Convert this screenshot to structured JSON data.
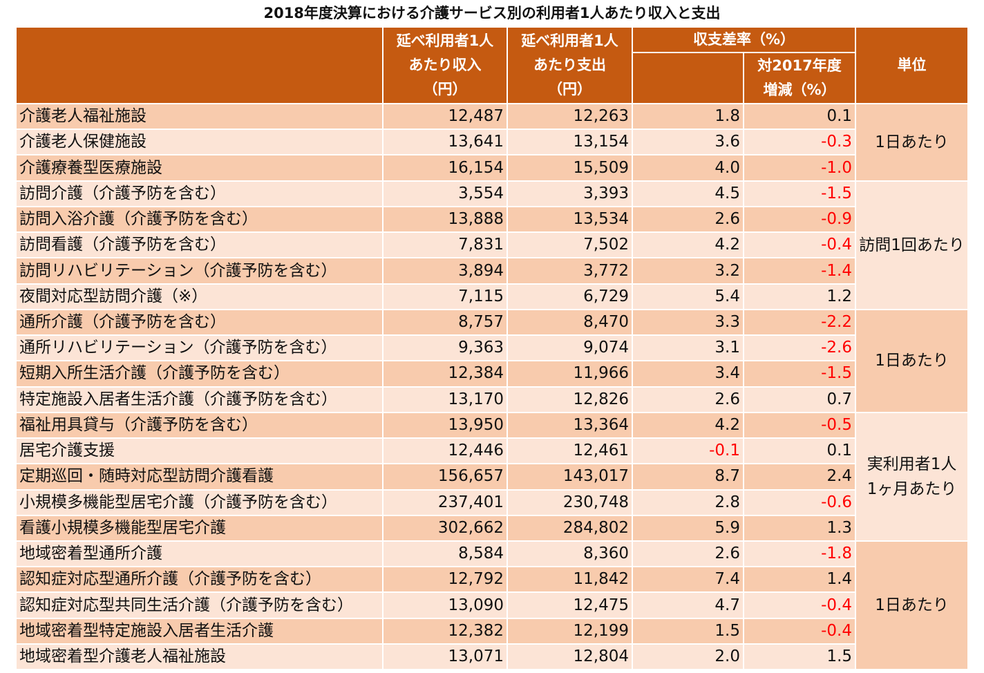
{
  "title": "2018年度決算における介護サービス別の利用者1人あたり収入と支出",
  "headers": {
    "income": [
      "延べ利用者1人",
      "あたり収入",
      "（円）"
    ],
    "expense": [
      "延べ利用者1人",
      "あたり支出",
      "（円）"
    ],
    "margin": "収支差率（%）",
    "change": [
      "対2017年度",
      "増減（%）"
    ],
    "unit": "単位"
  },
  "rows": [
    {
      "name": "介護老人福祉施設",
      "income": "12,487",
      "expense": "12,263",
      "margin": "1.8",
      "change": "0.1"
    },
    {
      "name": "介護老人保健施設",
      "income": "13,641",
      "expense": "13,154",
      "margin": "3.6",
      "change": "-0.3"
    },
    {
      "name": "介護療養型医療施設",
      "income": "16,154",
      "expense": "15,509",
      "margin": "4.0",
      "change": "-1.0"
    },
    {
      "name": "訪問介護（介護予防を含む）",
      "income": "3,554",
      "expense": "3,393",
      "margin": "4.5",
      "change": "-1.5"
    },
    {
      "name": "訪問入浴介護（介護予防を含む）",
      "income": "13,888",
      "expense": "13,534",
      "margin": "2.6",
      "change": "-0.9"
    },
    {
      "name": "訪問看護（介護予防を含む）",
      "income": "7,831",
      "expense": "7,502",
      "margin": "4.2",
      "change": "-0.4"
    },
    {
      "name": "訪問リハビリテーション（介護予防を含む）",
      "income": "3,894",
      "expense": "3,772",
      "margin": "3.2",
      "change": "-1.4"
    },
    {
      "name": "夜間対応型訪問介護（※）",
      "income": "7,115",
      "expense": "6,729",
      "margin": "5.4",
      "change": "1.2"
    },
    {
      "name": "通所介護（介護予防を含む）",
      "income": "8,757",
      "expense": "8,470",
      "margin": "3.3",
      "change": "-2.2"
    },
    {
      "name": "通所リハビリテーション（介護予防を含む）",
      "income": "9,363",
      "expense": "9,074",
      "margin": "3.1",
      "change": "-2.6"
    },
    {
      "name": "短期入所生活介護（介護予防を含む）",
      "income": "12,384",
      "expense": "11,966",
      "margin": "3.4",
      "change": "-1.5"
    },
    {
      "name": "特定施設入居者生活介護（介護予防を含む）",
      "income": "13,170",
      "expense": "12,826",
      "margin": "2.6",
      "change": "0.7"
    },
    {
      "name": "福祉用具貸与（介護予防を含む）",
      "income": "13,950",
      "expense": "13,364",
      "margin": "4.2",
      "change": "-0.5"
    },
    {
      "name": "居宅介護支援",
      "income": "12,446",
      "expense": "12,461",
      "margin": "-0.1",
      "change": "0.1"
    },
    {
      "name": "定期巡回・随時対応型訪問介護看護",
      "income": "156,657",
      "expense": "143,017",
      "margin": "8.7",
      "change": "2.4"
    },
    {
      "name": "小規模多機能型居宅介護（介護予防を含む）",
      "income": "237,401",
      "expense": "230,748",
      "margin": "2.8",
      "change": "-0.6"
    },
    {
      "name": "看護小規模多機能型居宅介護",
      "income": "302,662",
      "expense": "284,802",
      "margin": "5.9",
      "change": "1.3"
    },
    {
      "name": "地域密着型通所介護",
      "income": "8,584",
      "expense": "8,360",
      "margin": "2.6",
      "change": "-1.8"
    },
    {
      "name": "認知症対応型通所介護（介護予防を含む）",
      "income": "12,792",
      "expense": "11,842",
      "margin": "7.4",
      "change": "1.4"
    },
    {
      "name": "認知症対応型共同生活介護（介護予防を含む）",
      "income": "13,090",
      "expense": "12,475",
      "margin": "4.7",
      "change": "-0.4"
    },
    {
      "name": "地域密着型特定施設入居者生活介護",
      "income": "12,382",
      "expense": "12,199",
      "margin": "1.5",
      "change": "-0.4"
    },
    {
      "name": "地域密着型介護老人福祉施設",
      "income": "13,071",
      "expense": "12,804",
      "margin": "2.0",
      "change": "1.5"
    }
  ],
  "units": [
    {
      "lines": [
        "1日あたり"
      ],
      "start": 0,
      "span": 3
    },
    {
      "lines": [
        "訪問1回あたり"
      ],
      "start": 3,
      "span": 5
    },
    {
      "lines": [
        "1日あたり"
      ],
      "start": 8,
      "span": 4
    },
    {
      "lines": [
        "実利用者1人",
        "1ヶ月あたり"
      ],
      "start": 12,
      "span": 5
    },
    {
      "lines": [
        "1日あたり"
      ],
      "start": 17,
      "span": 5
    }
  ],
  "colors": {
    "header": "#c55a11",
    "row_dark": "#f8cbad",
    "row_light": "#fce4d6",
    "negative": "#ff0000"
  }
}
